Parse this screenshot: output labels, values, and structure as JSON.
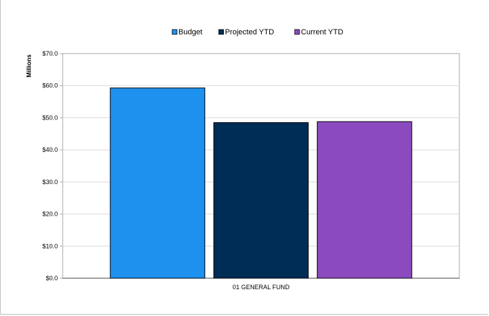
{
  "chart_data": {
    "type": "bar",
    "categories": [
      "01 GENERAL FUND"
    ],
    "series": [
      {
        "name": "Budget",
        "values": [
          59.3
        ],
        "color": "#1e90ee"
      },
      {
        "name": "Projected YTD",
        "values": [
          48.5
        ],
        "color": "#002d55"
      },
      {
        "name": "Current YTD",
        "values": [
          48.8
        ],
        "color": "#8b4bbf"
      }
    ],
    "ylabel": "Millions",
    "ylim": [
      0,
      70
    ],
    "yticks": [
      "$0.0",
      "$10.0",
      "$20.0",
      "$30.0",
      "$40.0",
      "$50.0",
      "$60.0",
      "$70.0"
    ],
    "grid": true,
    "legend_position": "top-center"
  }
}
